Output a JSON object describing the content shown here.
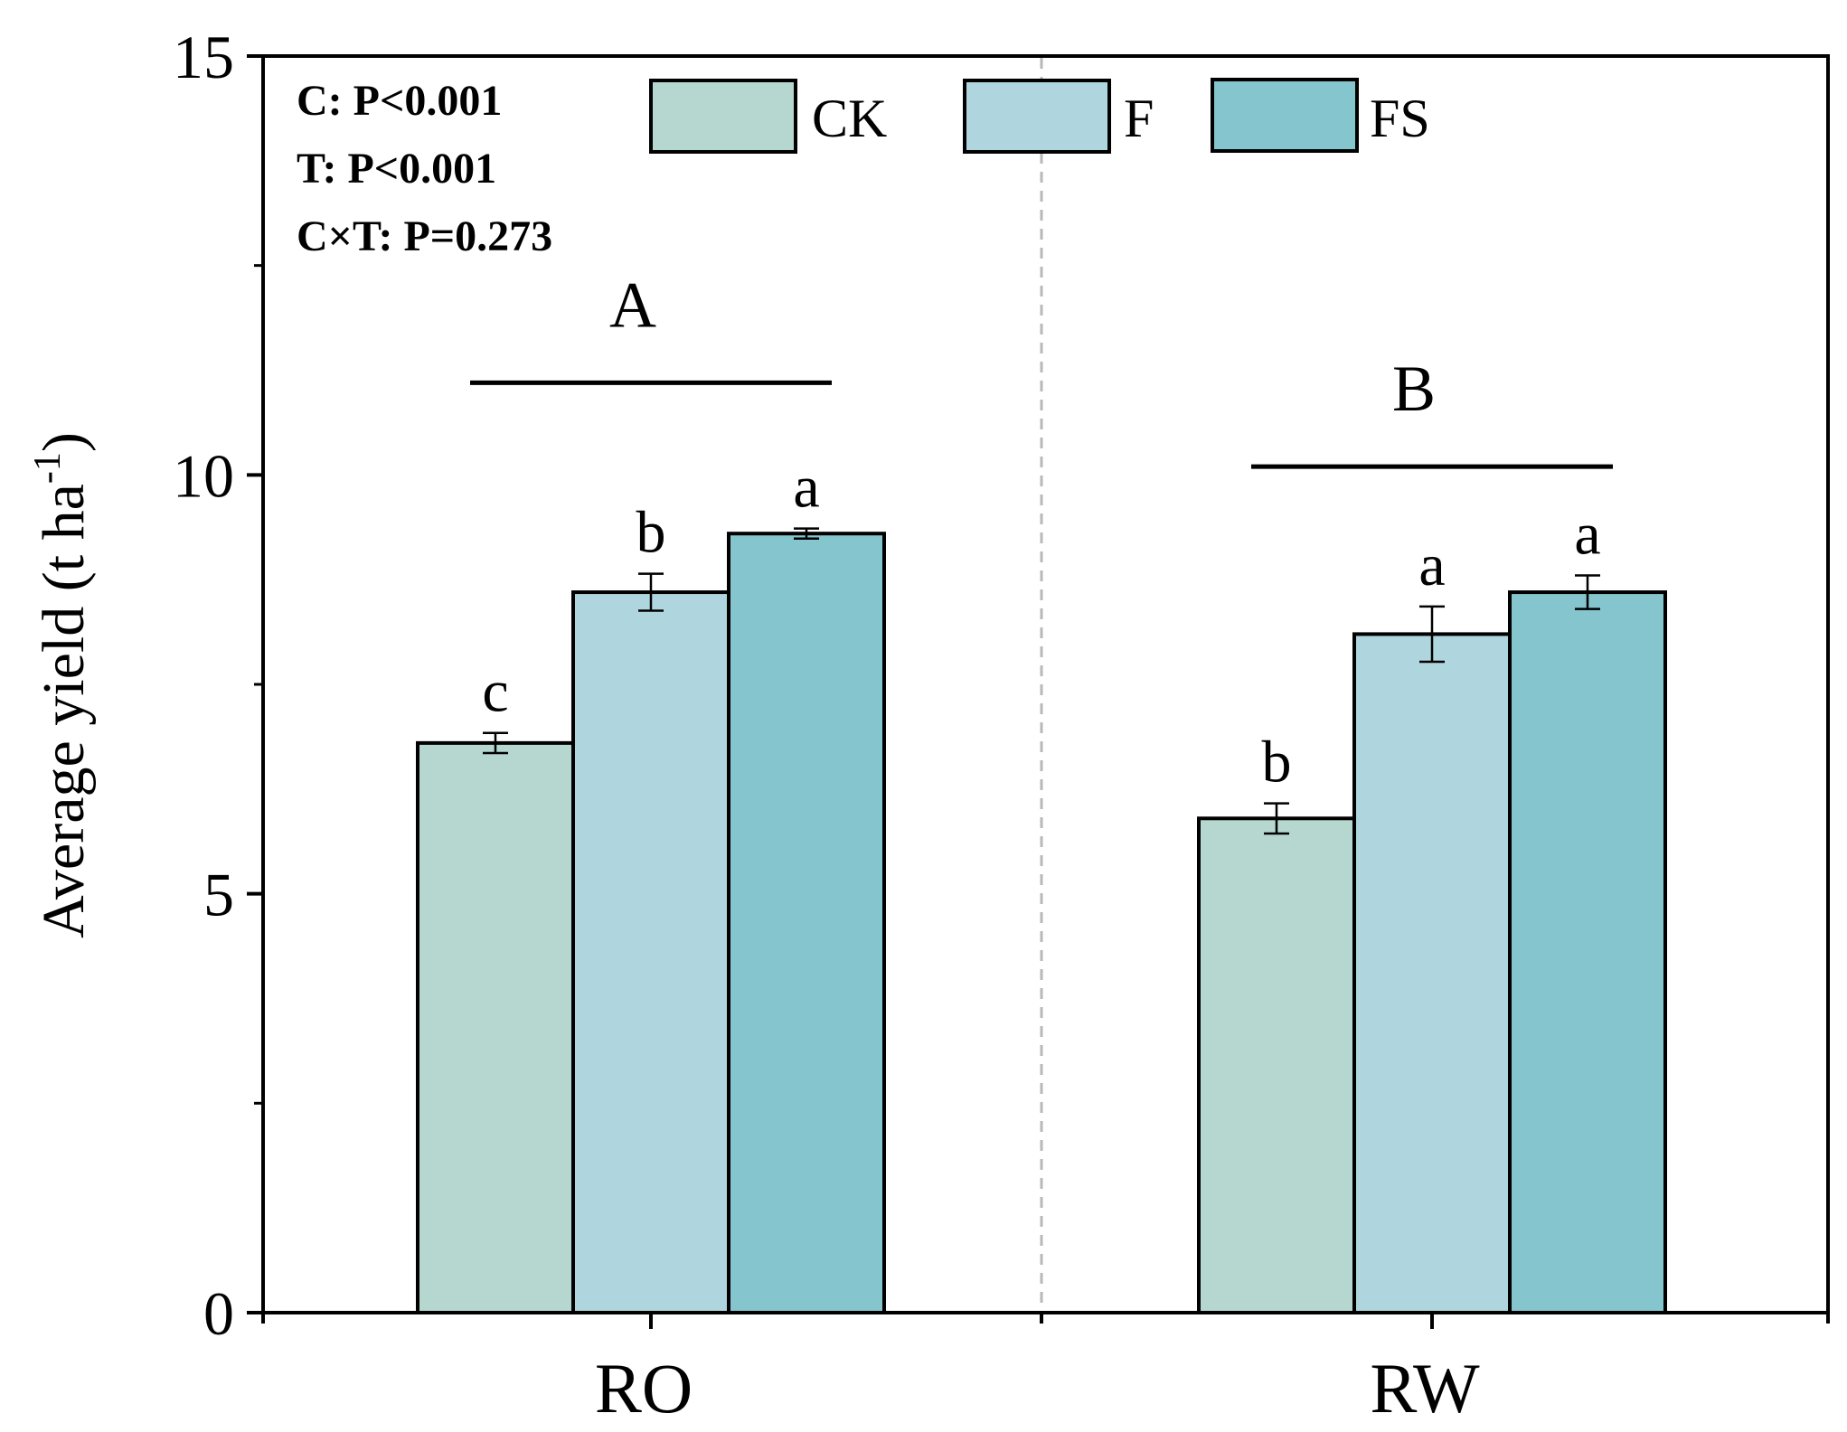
{
  "chart_data": {
    "type": "bar",
    "title": "",
    "xlabel": "",
    "ylabel": "Average yield (t ha",
    "ylabel_superscript": "-1",
    "ylabel_close": ")",
    "ylim": [
      0,
      15
    ],
    "yticks": [
      0,
      5,
      10,
      15
    ],
    "ytick_labels": [
      "0",
      "5",
      "10",
      "15"
    ],
    "categories": [
      "RO",
      "RW"
    ],
    "series": [
      {
        "name": "CK",
        "color": "#b5d7d0",
        "values": [
          6.8,
          5.9
        ],
        "errors": [
          0.12,
          0.18
        ],
        "letters": [
          "c",
          "b"
        ]
      },
      {
        "name": "F",
        "color": "#afd6de",
        "values": [
          8.6,
          8.1
        ],
        "errors": [
          0.22,
          0.33
        ],
        "letters": [
          "b",
          "a"
        ]
      },
      {
        "name": "FS",
        "color": "#85c5cd",
        "values": [
          9.3,
          8.6
        ],
        "errors": [
          0.06,
          0.2
        ],
        "letters": [
          "a",
          "a"
        ]
      }
    ],
    "group_labels": [
      {
        "category": "RO",
        "label": "A",
        "bar_level": 11.1
      },
      {
        "category": "RW",
        "label": "B",
        "bar_level": 10.1
      }
    ],
    "stats": [
      "C: P<0.001",
      "T: P<0.001",
      "C×T: P=0.273"
    ],
    "legend_position": "top-center",
    "separator": "dashed vertical line between groups",
    "colors": {
      "axis": "#000000",
      "separator": "#b8b8b8"
    }
  }
}
